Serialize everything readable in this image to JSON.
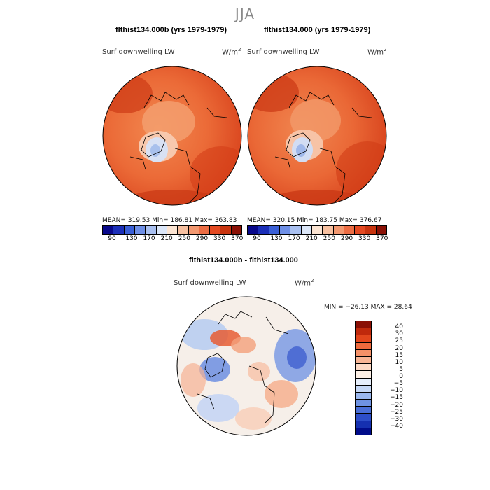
{
  "page_title": "JJA",
  "panels": [
    {
      "title": "flthist134.000b (yrs 1979-1979)",
      "variable": "Surf downwelling LW",
      "units": "W/m",
      "units_exp": "2",
      "stats": "MEAN= 319.53   Min= 186.81   Max= 363.83"
    },
    {
      "title": "flthist134.000 (yrs 1979-1979)",
      "variable": "Surf downwelling LW",
      "units": "W/m",
      "units_exp": "2",
      "stats": "MEAN= 320.15   Min= 183.75   Max= 376.67"
    }
  ],
  "top_colorbar": {
    "colors": [
      "#08088a",
      "#1b2fb8",
      "#3a5fd6",
      "#6e8fe6",
      "#a9c0f0",
      "#dbe6f8",
      "#fbe4d2",
      "#f7c0a0",
      "#f29870",
      "#ec6d44",
      "#e44a22",
      "#c8340f",
      "#8a1106"
    ],
    "tick_labels": [
      "90",
      "130",
      "170",
      "210",
      "250",
      "290",
      "330",
      "370"
    ]
  },
  "diff": {
    "title": "flthist134.000b - flthist134.000",
    "variable": "Surf downwelling LW",
    "units": "W/m",
    "units_exp": "2",
    "stats": "MIN = −26.13 MAX =  28.64",
    "colorbar_colors": [
      "#8a0f05",
      "#c0290c",
      "#e2461c",
      "#ee6a3d",
      "#f59168",
      "#f8b595",
      "#fcd9c5",
      "#fdf0e6",
      "#e6eefb",
      "#c5d7f5",
      "#9ab7ee",
      "#6f93e3",
      "#4a6fd8",
      "#2d4ec9",
      "#1530b0",
      "#000c8a"
    ],
    "colorbar_labels": [
      "40",
      "30",
      "25",
      "20",
      "15",
      "10",
      "5",
      "0",
      "−5",
      "−10",
      "−15",
      "−20",
      "−25",
      "−30",
      "−40"
    ]
  }
}
